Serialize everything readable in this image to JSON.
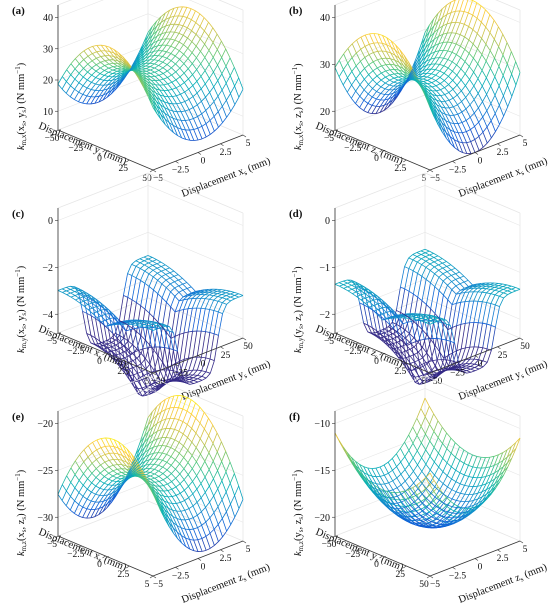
{
  "chart_data": [
    {
      "type": "surface3d",
      "panel_label": "(a)",
      "zlabel_sym": "k",
      "zlabel_sub": "m,x",
      "zlabel_args": "(x",
      "zlabel_args_sub1": "s",
      "zlabel_args_mid": ", y",
      "zlabel_args_sub2": "s",
      "zlabel_unit": ") (N mm",
      "xlabel": "Displacement x",
      "xlabel_sub": "s",
      "xlabel_unit": " (mm)",
      "ylabel": "Displacement y",
      "ylabel_sub": "s",
      "ylabel_unit": " (mm)",
      "x_ticks": [
        "−5",
        "−2.5",
        "0",
        "2.5",
        "5"
      ],
      "y_ticks": [
        "−50",
        "−25",
        "0",
        "25",
        "50"
      ],
      "z_ticks": [
        "10",
        "20",
        "30",
        "40"
      ],
      "xlim": [
        -5,
        5
      ],
      "ylim": [
        -50,
        50
      ],
      "zlim": [
        10,
        40
      ],
      "surface": {
        "kind": "saddle",
        "base": 25,
        "x2": 10,
        "y2": -12,
        "xy": 2
      },
      "colormap": "parula"
    },
    {
      "type": "surface3d",
      "panel_label": "(b)",
      "zlabel_sym": "k",
      "zlabel_sub": "m,x",
      "zlabel_args": "(x",
      "zlabel_args_sub1": "s",
      "zlabel_args_mid": ", z",
      "zlabel_args_sub2": "s",
      "zlabel_unit": ") (N mm",
      "xlabel": "Displacement x",
      "xlabel_sub": "s",
      "xlabel_unit": " (mm)",
      "ylabel": "Displacement z",
      "ylabel_sub": "s",
      "ylabel_unit": " (mm)",
      "x_ticks": [
        "−5",
        "−2.5",
        "0",
        "2.5",
        "5"
      ],
      "y_ticks": [
        "−5",
        "−2.5",
        "0",
        "2.5",
        "5"
      ],
      "z_ticks": [
        "20",
        "30",
        "40"
      ],
      "xlim": [
        -5,
        5
      ],
      "ylim": [
        -5,
        5
      ],
      "zlim": [
        18,
        42
      ],
      "surface": {
        "kind": "saddle",
        "base": 28,
        "x2": 12,
        "y2": -10,
        "xy": 0
      },
      "colormap": "parula"
    },
    {
      "type": "surface3d",
      "panel_label": "(c)",
      "zlabel_sym": "k",
      "zlabel_sub": "m,y",
      "zlabel_args": "(x",
      "zlabel_args_sub1": "s",
      "zlabel_args_mid": ", y",
      "zlabel_args_sub2": "s",
      "zlabel_unit": ") (N mm",
      "xlabel": "Displacement y",
      "xlabel_sub": "s",
      "xlabel_unit": " (mm)",
      "ylabel": "Displacement x",
      "ylabel_sub": "s",
      "ylabel_unit": " (mm)",
      "x_ticks": [
        "−50",
        "−25",
        "0",
        "25",
        "50"
      ],
      "y_ticks": [
        "−5",
        "−2.5",
        "0",
        "2.5",
        "5"
      ],
      "z_ticks": [
        "−4",
        "−2",
        "0"
      ],
      "xlim": [
        -50,
        50
      ],
      "ylim": [
        -5,
        5
      ],
      "zlim": [
        -4.2,
        0.5
      ],
      "surface": {
        "kind": "well",
        "depth": 2.0,
        "curv": 2.0,
        "width": 22
      },
      "colormap": "parula"
    },
    {
      "type": "surface3d",
      "panel_label": "(d)",
      "zlabel_sym": "k",
      "zlabel_sub": "m,y",
      "zlabel_args": "(y",
      "zlabel_args_sub1": "s",
      "zlabel_args_mid": ", z",
      "zlabel_args_sub2": "s",
      "zlabel_unit": ") (N mm",
      "xlabel": "Displacement y",
      "xlabel_sub": "s",
      "xlabel_unit": " (mm)",
      "ylabel": "Displacement z",
      "ylabel_sub": "s",
      "ylabel_unit": " (mm)",
      "x_ticks": [
        "−50",
        "−25",
        "0",
        "25",
        "50"
      ],
      "y_ticks": [
        "−5",
        "−2.5",
        "0",
        "2.5",
        "5"
      ],
      "z_ticks": [
        "−2",
        "−1",
        "0"
      ],
      "xlim": [
        -50,
        50
      ],
      "ylim": [
        -5,
        5
      ],
      "zlim": [
        -2.8,
        0.3
      ],
      "surface": {
        "kind": "well",
        "depth": 1.2,
        "curv": 1.3,
        "width": 22
      },
      "colormap": "parula"
    },
    {
      "type": "surface3d",
      "panel_label": "(e)",
      "zlabel_sym": "k",
      "zlabel_sub": "m,z",
      "zlabel_args": "(x",
      "zlabel_args_sub1": "s",
      "zlabel_args_mid": ", z",
      "zlabel_args_sub2": "s",
      "zlabel_unit": ") (N mm",
      "xlabel": "Displacement z",
      "xlabel_sub": "s",
      "xlabel_unit": " (mm)",
      "ylabel": "Displacement x",
      "ylabel_sub": "s",
      "ylabel_unit": " (mm)",
      "x_ticks": [
        "−5",
        "−2.5",
        "0",
        "2.5",
        "5"
      ],
      "y_ticks": [
        "−5",
        "−2.5",
        "0",
        "2.5",
        "5"
      ],
      "z_ticks": [
        "−30",
        "−25",
        "−20"
      ],
      "xlim": [
        -5,
        5
      ],
      "ylim": [
        -5,
        5
      ],
      "zlim": [
        -34,
        -16
      ],
      "surface": {
        "kind": "saddle",
        "base": -25,
        "x2": 8,
        "y2": -8,
        "xy": 3
      },
      "colormap": "parula"
    },
    {
      "type": "surface3d",
      "panel_label": "(f)",
      "zlabel_sym": "k",
      "zlabel_sub": "m,z",
      "zlabel_args": "(y",
      "zlabel_args_sub1": "s",
      "zlabel_args_mid": ", z",
      "zlabel_args_sub2": "s",
      "zlabel_unit": ") (N mm",
      "xlabel": "Displacement z",
      "xlabel_sub": "s",
      "xlabel_unit": " (mm)",
      "ylabel": "Displacement y",
      "ylabel_sub": "s",
      "ylabel_unit": " (mm)",
      "x_ticks": [
        "−5",
        "−2.5",
        "0",
        "2.5",
        "5"
      ],
      "y_ticks": [
        "−50",
        "−25",
        "0",
        "25",
        "50"
      ],
      "z_ticks": [
        "−20",
        "−15",
        "−10"
      ],
      "xlim": [
        -5,
        5
      ],
      "ylim": [
        -50,
        50
      ],
      "zlim": [
        -24,
        -7
      ],
      "surface": {
        "kind": "bowl",
        "base": -22,
        "x2": 7,
        "y2": 5,
        "xy": 0
      },
      "colormap": "parula"
    }
  ]
}
